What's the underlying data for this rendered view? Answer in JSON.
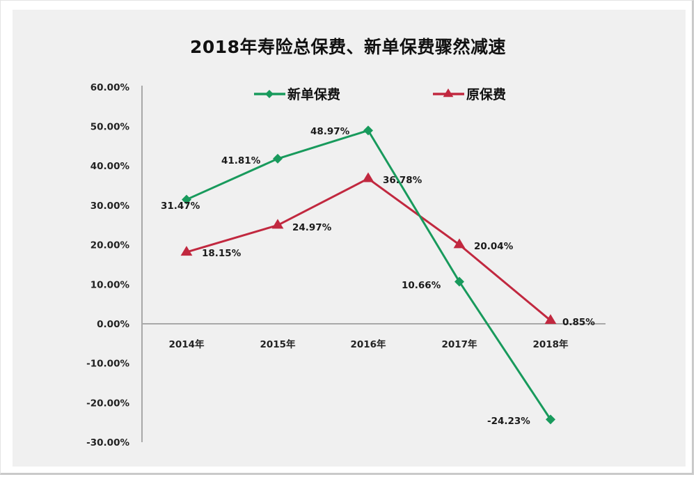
{
  "title": "2018年寿险总保费、新单保费骤然减速",
  "colors": {
    "new_premium": "#189a5c",
    "original_premium": "#c1283f",
    "axis": "#a8a8a8",
    "panel_bg": "#f0f0f0"
  },
  "legend": {
    "items": [
      {
        "label": "新单保费",
        "marker": "diamond",
        "color": "#189a5c"
      },
      {
        "label": "原保费",
        "marker": "triangle",
        "color": "#c1283f"
      }
    ]
  },
  "y_axis": {
    "ticks": [
      "60.00%",
      "50.00%",
      "40.00%",
      "30.00%",
      "20.00%",
      "10.00%",
      "0.00%",
      "-10.00%",
      "-20.00%",
      "-30.00%"
    ]
  },
  "x_axis": {
    "ticks": [
      "2014年",
      "2015年",
      "2016年",
      "2017年",
      "2018年"
    ]
  },
  "data_labels": {
    "new_premium": [
      "31.47%",
      "41.81%",
      "48.97%",
      "10.66%",
      "-24.23%"
    ],
    "original_premium": [
      "18.15%",
      "24.97%",
      "36.78%",
      "20.04%",
      "0.85%"
    ]
  },
  "chart_data": {
    "type": "line",
    "title": "2018年寿险总保费、新单保费骤然减速",
    "categories": [
      "2014年",
      "2015年",
      "2016年",
      "2017年",
      "2018年"
    ],
    "series": [
      {
        "name": "新单保费",
        "values": [
          31.47,
          41.81,
          48.97,
          10.66,
          -24.23
        ],
        "marker": "diamond",
        "color": "#189a5c"
      },
      {
        "name": "原保费",
        "values": [
          18.15,
          24.97,
          36.78,
          20.04,
          0.85
        ],
        "marker": "triangle",
        "color": "#c1283f"
      }
    ],
    "xlabel": "",
    "ylabel": "",
    "ylim": [
      -30,
      60
    ],
    "y_tick_step": 10,
    "y_format": "percent_2dp",
    "grid": false,
    "legend_position": "top",
    "data_labels": true
  }
}
